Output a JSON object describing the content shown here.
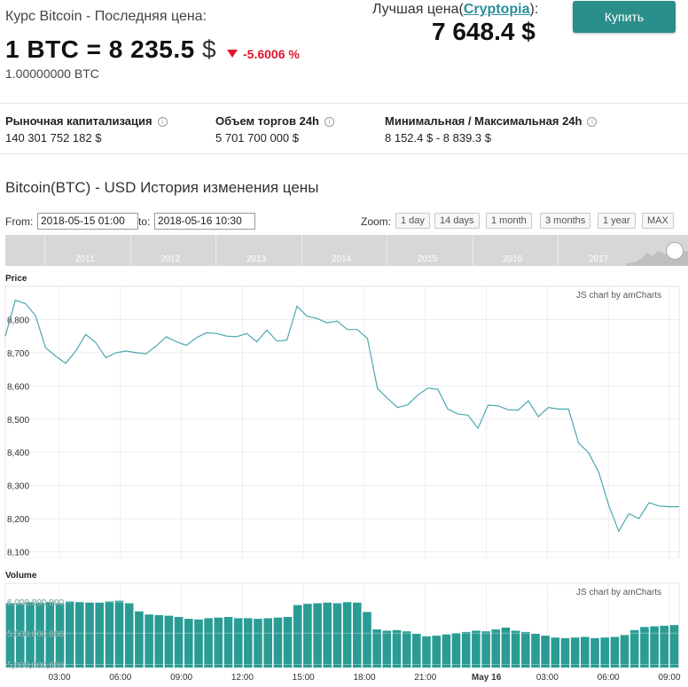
{
  "header": {
    "title": "Курс Bitcoin - Последняя цена:",
    "price_main": "1 BTC = 8 235.5",
    "price_unit": "$",
    "change": "-5.6006 %",
    "amount": "1.00000000 BTC",
    "best_label_prefix": "Лучшая цена(",
    "best_label_link": "Cryptopia",
    "best_label_suffix": "):",
    "best_value": "7 648.4 $",
    "buy_label": "Купить"
  },
  "stats": [
    {
      "label": "Рыночная капитализация",
      "value": "140 301 752 182 $"
    },
    {
      "label": "Объем торгов 24h",
      "value": "5 701 700 000 $"
    },
    {
      "label": "Минимальная / Максимальная 24h",
      "value": "8 152.4 $ - 8 839.3 $"
    }
  ],
  "chart_section": {
    "title": "Bitcoin(BTC) - USD История изменения цены",
    "from_label": "From:",
    "from_value": "2018-05-15 01:00",
    "to_label": "to:",
    "to_value": "2018-05-16 10:30",
    "zoom_label": "Zoom:",
    "zoom_buttons": [
      "1 day",
      "14 days",
      "1 month",
      "3 months",
      "1 year",
      "MAX"
    ],
    "navigator_years": [
      "2011",
      "2012",
      "2013",
      "2014",
      "2015",
      "2016",
      "2017"
    ],
    "credit": "JS chart by amCharts"
  },
  "colors": {
    "accent": "#2a8f8a",
    "line": "#4aa8ae",
    "bar": "#2a9c94",
    "negative": "#e1152b"
  },
  "chart_data": [
    {
      "type": "line",
      "title": "Price",
      "x_ticks": [
        "03:00",
        "06:00",
        "09:00",
        "12:00",
        "15:00",
        "18:00",
        "21:00",
        "May 16",
        "03:00",
        "06:00",
        "09:00"
      ],
      "y_ticks": [
        "8,100",
        "8,200",
        "8,300",
        "8,400",
        "8,500",
        "8,600",
        "8,700",
        "8,800"
      ],
      "ylim": [
        8080,
        8900
      ],
      "series": [
        {
          "x": [
            "2018-05-15 01:00",
            "2018-05-15 01:30",
            "2018-05-15 02:00",
            "2018-05-15 02:30",
            "2018-05-15 03:00",
            "2018-05-15 03:30",
            "2018-05-15 04:00",
            "2018-05-15 04:30",
            "2018-05-15 05:00",
            "2018-05-15 05:30",
            "2018-05-15 06:00",
            "2018-05-15 06:30",
            "2018-05-15 07:00",
            "2018-05-15 07:30",
            "2018-05-15 08:00",
            "2018-05-15 08:30",
            "2018-05-15 09:00",
            "2018-05-15 09:30",
            "2018-05-15 10:00",
            "2018-05-15 10:30",
            "2018-05-15 11:00",
            "2018-05-15 11:30",
            "2018-05-15 12:00",
            "2018-05-15 12:30",
            "2018-05-15 13:00",
            "2018-05-15 13:30",
            "2018-05-15 14:00",
            "2018-05-15 14:30",
            "2018-05-15 15:00",
            "2018-05-15 15:30",
            "2018-05-15 16:00",
            "2018-05-15 16:30",
            "2018-05-15 17:00",
            "2018-05-15 17:30",
            "2018-05-15 18:00",
            "2018-05-15 18:30",
            "2018-05-15 19:00",
            "2018-05-15 19:30",
            "2018-05-15 20:00",
            "2018-05-15 20:30",
            "2018-05-15 21:00",
            "2018-05-15 21:30",
            "2018-05-15 22:00",
            "2018-05-15 22:30",
            "2018-05-15 23:00",
            "2018-05-15 23:30",
            "2018-05-16 00:00",
            "2018-05-16 00:30",
            "2018-05-16 01:00",
            "2018-05-16 01:30",
            "2018-05-16 02:00",
            "2018-05-16 02:30",
            "2018-05-16 03:00",
            "2018-05-16 03:30",
            "2018-05-16 04:00",
            "2018-05-16 04:30",
            "2018-05-16 05:00",
            "2018-05-16 05:30",
            "2018-05-16 06:00",
            "2018-05-16 06:30",
            "2018-05-16 07:00",
            "2018-05-16 07:30",
            "2018-05-16 08:00",
            "2018-05-16 08:30",
            "2018-05-16 09:00",
            "2018-05-16 09:30",
            "2018-05-16 10:00",
            "2018-05-16 10:30"
          ],
          "values": [
            8750,
            8858,
            8848,
            8812,
            8715,
            8690,
            8668,
            8705,
            8755,
            8730,
            8685,
            8700,
            8705,
            8700,
            8697,
            8720,
            8748,
            8733,
            8722,
            8745,
            8760,
            8758,
            8750,
            8748,
            8758,
            8733,
            8768,
            8735,
            8738,
            8840,
            8810,
            8803,
            8790,
            8795,
            8770,
            8770,
            8743,
            8592,
            8563,
            8535,
            8543,
            8572,
            8593,
            8590,
            8530,
            8515,
            8512,
            8472,
            8542,
            8540,
            8528,
            8527,
            8555,
            8507,
            8535,
            8530,
            8530,
            8428,
            8398,
            8340,
            8240,
            8162,
            8215,
            8200,
            8248,
            8238,
            8236,
            8236
          ]
        }
      ]
    },
    {
      "type": "bar",
      "title": "Volume",
      "x_ticks": [
        "03:00",
        "06:00",
        "09:00",
        "12:00",
        "15:00",
        "18:00",
        "21:00",
        "May 16",
        "03:00",
        "06:00",
        "09:00"
      ],
      "y_ticks": [
        "5,000,000,000",
        "5,500,000,000",
        "6,000,000,000"
      ],
      "ylim": [
        4950000000,
        6300000000
      ],
      "series": [
        {
          "values": [
            5980000000,
            5980000000,
            6000000000,
            5990000000,
            6000000000,
            5980000000,
            6010000000,
            6000000000,
            5990000000,
            5990000000,
            6010000000,
            6020000000,
            5980000000,
            5850000000,
            5800000000,
            5790000000,
            5780000000,
            5760000000,
            5730000000,
            5720000000,
            5740000000,
            5750000000,
            5760000000,
            5740000000,
            5740000000,
            5730000000,
            5740000000,
            5750000000,
            5760000000,
            5950000000,
            5970000000,
            5980000000,
            5990000000,
            5980000000,
            6000000000,
            5990000000,
            5840000000,
            5560000000,
            5540000000,
            5550000000,
            5530000000,
            5490000000,
            5450000000,
            5460000000,
            5480000000,
            5500000000,
            5520000000,
            5540000000,
            5530000000,
            5560000000,
            5590000000,
            5540000000,
            5520000000,
            5490000000,
            5460000000,
            5430000000,
            5420000000,
            5430000000,
            5440000000,
            5420000000,
            5430000000,
            5440000000,
            5470000000,
            5550000000,
            5600000000,
            5610000000,
            5620000000,
            5630000000
          ]
        }
      ]
    }
  ]
}
